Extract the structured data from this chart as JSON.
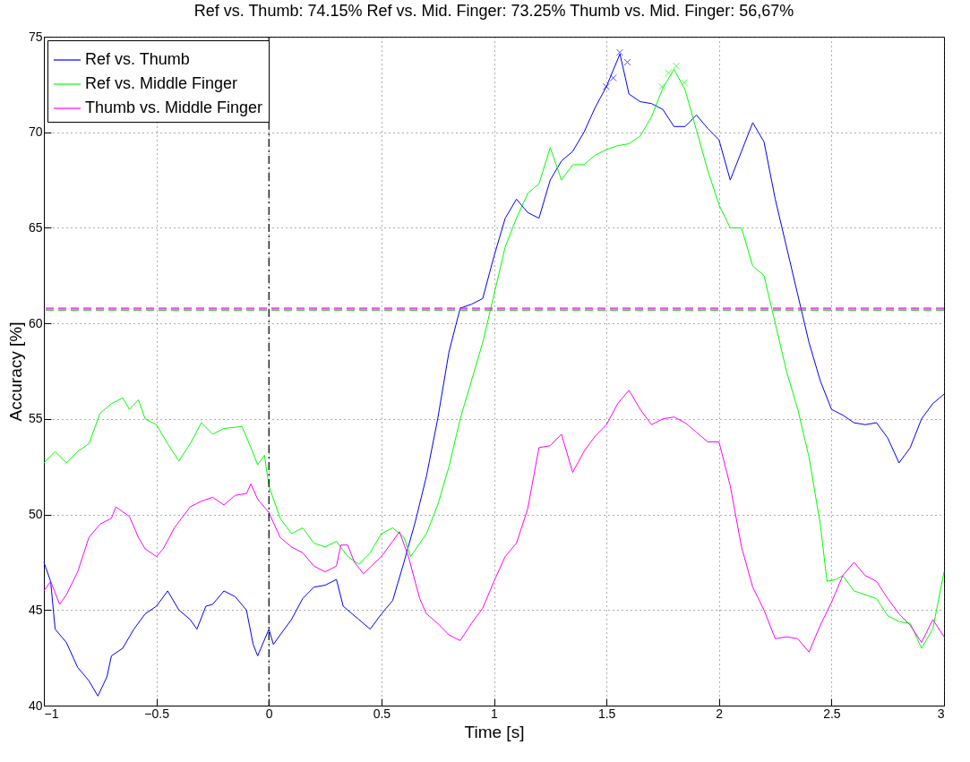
{
  "chart_data": {
    "type": "line",
    "title": "Ref vs. Thumb: 74.15%    Ref vs. Mid. Finger: 73.25%    Thumb vs. Mid. Finger: 56,67%",
    "xlabel": "Time [s]",
    "ylabel": "Accuracy [%]",
    "xlim": [
      -1,
      3
    ],
    "ylim": [
      40,
      75
    ],
    "xticks": [
      {
        "value": -1,
        "label": "−1"
      },
      {
        "value": -0.5,
        "label": "−0.5"
      },
      0,
      0.5,
      1,
      1.5,
      2,
      2.5,
      3
    ],
    "yticks": [
      40,
      45,
      50,
      55,
      60,
      65,
      70,
      75
    ],
    "grid": true,
    "legend": "top left",
    "series": [
      {
        "name": "Ref vs. Thumb",
        "color": "#0000ff",
        "x": [
          -1,
          -0.97,
          -0.95,
          -0.9,
          -0.85,
          -0.8,
          -0.76,
          -0.72,
          -0.7,
          -0.65,
          -0.6,
          -0.55,
          -0.5,
          -0.45,
          -0.4,
          -0.35,
          -0.32,
          -0.28,
          -0.25,
          -0.2,
          -0.15,
          -0.1,
          -0.07,
          -0.05,
          0,
          0.02,
          0.05,
          0.1,
          0.15,
          0.2,
          0.25,
          0.3,
          0.33,
          0.4,
          0.45,
          0.5,
          0.55,
          0.6,
          0.65,
          0.7,
          0.75,
          0.8,
          0.85,
          0.9,
          0.95,
          1,
          1.05,
          1.1,
          1.15,
          1.2,
          1.25,
          1.3,
          1.35,
          1.4,
          1.45,
          1.5,
          1.56,
          1.6,
          1.65,
          1.7,
          1.75,
          1.8,
          1.85,
          1.9,
          1.95,
          2,
          2.05,
          2.1,
          2.15,
          2.2,
          2.25,
          2.3,
          2.35,
          2.4,
          2.45,
          2.5,
          2.55,
          2.6,
          2.65,
          2.7,
          2.75,
          2.8,
          2.85,
          2.9,
          2.95,
          3
        ],
        "values": [
          47.5,
          46.5,
          44,
          43.3,
          42,
          41.3,
          40.5,
          41.5,
          42.6,
          43,
          44,
          44.8,
          45.2,
          46,
          45,
          44.5,
          44,
          45.2,
          45.3,
          46,
          45.7,
          45,
          43.2,
          42.6,
          44,
          43.2,
          43.7,
          44.5,
          45.6,
          46.2,
          46.3,
          46.6,
          45.2,
          44.5,
          44,
          44.8,
          45.5,
          47.5,
          49.6,
          52,
          55,
          58.5,
          60.8,
          61,
          61.3,
          63.5,
          65.5,
          66.5,
          65.8,
          65.5,
          67.5,
          68.5,
          69,
          70,
          71.3,
          72.4,
          74.1,
          72,
          71.6,
          71.5,
          71.2,
          70.3,
          70.3,
          70.9,
          70.2,
          69.6,
          67.5,
          69,
          70.5,
          69.5,
          66.5,
          64,
          61.5,
          59,
          57,
          55.5,
          55.2,
          54.8,
          54.7,
          54.8,
          54,
          52.7,
          53.5,
          55,
          55.8,
          56.3
        ]
      },
      {
        "name": "Ref vs. Middle Finger",
        "color": "#00ff00",
        "x": [
          -1,
          -0.95,
          -0.9,
          -0.85,
          -0.8,
          -0.75,
          -0.7,
          -0.65,
          -0.62,
          -0.58,
          -0.55,
          -0.5,
          -0.45,
          -0.4,
          -0.35,
          -0.3,
          -0.25,
          -0.2,
          -0.12,
          -0.08,
          -0.05,
          -0.02,
          0,
          0.05,
          0.1,
          0.15,
          0.2,
          0.25,
          0.3,
          0.35,
          0.4,
          0.45,
          0.5,
          0.55,
          0.6,
          0.63,
          0.7,
          0.75,
          0.8,
          0.85,
          0.9,
          0.95,
          1,
          1.05,
          1.1,
          1.15,
          1.2,
          1.25,
          1.3,
          1.35,
          1.4,
          1.45,
          1.5,
          1.55,
          1.6,
          1.65,
          1.7,
          1.75,
          1.8,
          1.85,
          1.9,
          1.95,
          2,
          2.05,
          2.1,
          2.15,
          2.2,
          2.25,
          2.3,
          2.35,
          2.4,
          2.45,
          2.48,
          2.52,
          2.55,
          2.6,
          2.65,
          2.7,
          2.75,
          2.8,
          2.85,
          2.9,
          2.95,
          3
        ],
        "values": [
          52.7,
          53.3,
          52.7,
          53.3,
          53.7,
          55.3,
          55.8,
          56.1,
          55.5,
          56,
          55,
          54.7,
          53.7,
          52.8,
          53.7,
          54.8,
          54.2,
          54.5,
          54.6,
          53.5,
          52.6,
          53.1,
          51.5,
          49.8,
          49,
          49.3,
          48.5,
          48.3,
          48.6,
          47.8,
          47.4,
          48,
          49,
          49.3,
          48.8,
          47.8,
          49,
          50.5,
          52.5,
          55,
          57,
          59,
          61.5,
          64,
          65.5,
          66.8,
          67.3,
          69.2,
          67.5,
          68.3,
          68.3,
          68.8,
          69.1,
          69.3,
          69.4,
          69.8,
          70.8,
          72.3,
          73.3,
          72.2,
          70.1,
          68,
          66.2,
          65,
          65,
          63,
          62.5,
          60,
          57.5,
          55.5,
          53,
          49.5,
          46.5,
          46.6,
          46.8,
          46,
          45.8,
          45.6,
          44.7,
          44.4,
          44.3,
          43,
          44,
          47
        ]
      },
      {
        "name": "Thumb vs. Middle Finger",
        "color": "#ff00ff",
        "x": [
          -1,
          -0.97,
          -0.93,
          -0.9,
          -0.85,
          -0.8,
          -0.75,
          -0.7,
          -0.68,
          -0.62,
          -0.58,
          -0.55,
          -0.5,
          -0.47,
          -0.42,
          -0.35,
          -0.3,
          -0.25,
          -0.2,
          -0.15,
          -0.1,
          -0.08,
          -0.05,
          0,
          0.05,
          0.1,
          0.15,
          0.2,
          0.25,
          0.3,
          0.32,
          0.35,
          0.38,
          0.42,
          0.5,
          0.55,
          0.58,
          0.62,
          0.67,
          0.7,
          0.75,
          0.8,
          0.85,
          0.9,
          0.95,
          1,
          1.05,
          1.1,
          1.15,
          1.2,
          1.25,
          1.3,
          1.35,
          1.4,
          1.45,
          1.5,
          1.55,
          1.6,
          1.65,
          1.7,
          1.75,
          1.8,
          1.85,
          1.9,
          1.95,
          2,
          2.05,
          2.1,
          2.15,
          2.2,
          2.25,
          2.3,
          2.35,
          2.4,
          2.45,
          2.5,
          2.55,
          2.6,
          2.65,
          2.7,
          2.75,
          2.8,
          2.85,
          2.9,
          2.95,
          3
        ],
        "values": [
          46,
          46.5,
          45.3,
          45.8,
          47,
          48.8,
          49.5,
          49.8,
          50.4,
          49.9,
          48.8,
          48.2,
          47.8,
          48.2,
          49.3,
          50.4,
          50.7,
          50.9,
          50.5,
          51,
          51.1,
          51.6,
          50.8,
          50.1,
          48.8,
          48.3,
          48,
          47.3,
          47,
          47.3,
          48.4,
          48.4,
          47.5,
          46.9,
          47.8,
          48.6,
          49.1,
          47.8,
          45.6,
          44.8,
          44.3,
          43.7,
          43.4,
          44.3,
          45.1,
          46.5,
          47.8,
          48.5,
          50.3,
          53.5,
          53.6,
          54.2,
          52.2,
          53.3,
          54.1,
          54.7,
          55.8,
          56.5,
          55.5,
          54.7,
          55,
          55.1,
          54.8,
          54.3,
          53.8,
          53.8,
          51.5,
          48.3,
          46.2,
          45,
          43.5,
          43.6,
          43.5,
          42.8,
          44.2,
          45.4,
          46.8,
          47.5,
          46.8,
          46.5,
          45.6,
          44.8,
          44.2,
          43.3,
          44.5,
          43.6
        ]
      },
      {
        "type": "scatter",
        "marker": "cross",
        "color": "#0000ff",
        "x": [
          1.499,
          1.53,
          1.559,
          1.593
        ],
        "values": [
          72.39,
          72.84,
          74.18,
          73.67
        ]
      },
      {
        "type": "scatter",
        "marker": "cross",
        "color": "#00ff00",
        "x": [
          1.746,
          1.776,
          1.81,
          1.845
        ],
        "values": [
          72.39,
          73.11,
          73.47,
          72.6
        ]
      }
    ],
    "ref_lines": [
      {
        "axis": "x",
        "value": 0,
        "color": "#000000",
        "line_style": "dashdot"
      },
      {
        "axis": "y",
        "value": 60.8,
        "color": "#ff00ff",
        "line_style": "dashed"
      },
      {
        "axis": "y",
        "value": 60.7,
        "color": "#00aa00",
        "line_style": "dashed"
      }
    ]
  }
}
